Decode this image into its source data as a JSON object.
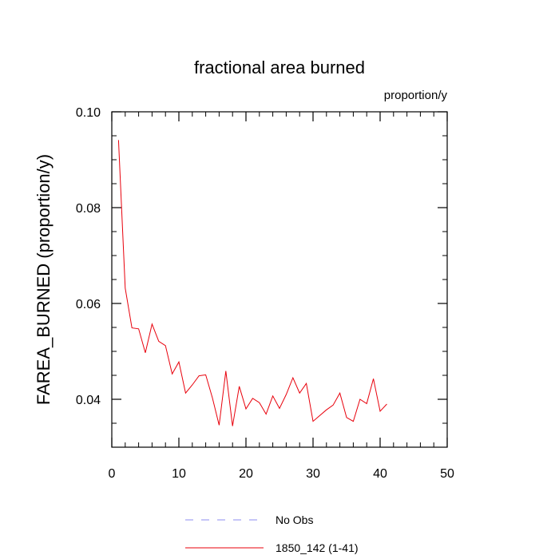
{
  "chart_data": {
    "type": "line",
    "title": "fractional area burned",
    "units_label": "proportion/y",
    "xlabel": "",
    "ylabel": "FAREA_BURNED  (proportion/y)",
    "xlim": [
      0,
      50
    ],
    "ylim": [
      0.03,
      0.1
    ],
    "x_ticks": [
      0,
      10,
      20,
      30,
      40,
      50
    ],
    "x_tick_labels": [
      "0",
      "10",
      "20",
      "30",
      "40",
      "50"
    ],
    "y_ticks": [
      0.04,
      0.06,
      0.08,
      0.1
    ],
    "y_tick_labels": [
      "0.04",
      "0.06",
      "0.08",
      "0.10"
    ],
    "grid": false,
    "legend_position": "bottom",
    "series": [
      {
        "name": "No Obs",
        "color": "#8c8cf0",
        "dash": "dashed",
        "x": [],
        "y": []
      },
      {
        "name": "1850_142 (1-41)",
        "color": "#e8000b",
        "dash": "solid",
        "x": [
          1,
          2,
          3,
          4,
          5,
          6,
          7,
          8,
          9,
          10,
          11,
          12,
          13,
          14,
          15,
          16,
          17,
          18,
          19,
          20,
          21,
          22,
          23,
          24,
          25,
          26,
          27,
          28,
          29,
          30,
          31,
          32,
          33,
          34,
          35,
          36,
          37,
          38,
          39,
          40,
          41
        ],
        "y": [
          0.0941,
          0.0632,
          0.0549,
          0.0547,
          0.0497,
          0.0557,
          0.0521,
          0.0512,
          0.0453,
          0.0478,
          0.0413,
          0.043,
          0.0449,
          0.0451,
          0.0403,
          0.0346,
          0.0459,
          0.0344,
          0.0427,
          0.038,
          0.0402,
          0.0393,
          0.0369,
          0.0407,
          0.0381,
          0.041,
          0.0445,
          0.0413,
          0.0433,
          0.0354,
          0.0366,
          0.0378,
          0.0388,
          0.0413,
          0.0362,
          0.0354,
          0.04,
          0.0391,
          0.0443,
          0.0375,
          0.039
        ]
      }
    ]
  }
}
